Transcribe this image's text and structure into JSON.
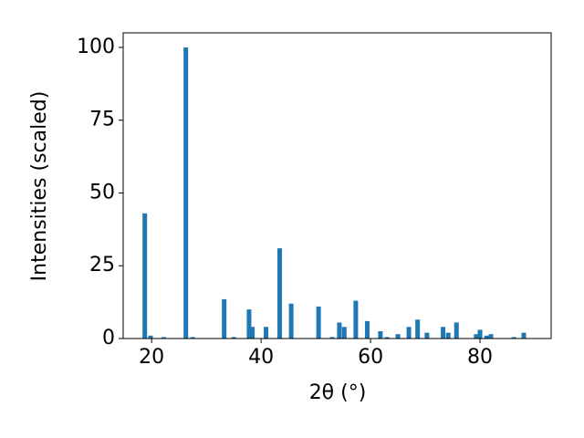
{
  "chart_data": {
    "type": "bar",
    "x_label": "2θ (°)",
    "y_label": "Intensities (scaled)",
    "x": [
      18.75,
      19.8,
      22.2,
      26.25,
      27.5,
      33.25,
      35,
      37.8,
      38.4,
      40.9,
      43.4,
      45.5,
      50.5,
      53,
      54.3,
      55.2,
      57.3,
      59.4,
      61.8,
      63,
      65,
      67,
      68.6,
      70.3,
      73.25,
      74.2,
      75.7,
      79.3,
      80,
      81.2,
      82,
      86.2,
      88
    ],
    "values": [
      43,
      1,
      0.5,
      100,
      0.5,
      13.5,
      0.5,
      10,
      4,
      4,
      31,
      12,
      11,
      0.5,
      5.5,
      4,
      13,
      6,
      2.5,
      0.5,
      1.5,
      4,
      6.5,
      2,
      4,
      2,
      5.5,
      1.5,
      3,
      1,
      1.5,
      0.5,
      2
    ],
    "color": "#1f77b4",
    "xlim": [
      14.8,
      93
    ],
    "xticks": [
      20,
      40,
      60,
      80
    ],
    "ylim": [
      0,
      105
    ],
    "yticks": [
      0,
      25,
      50,
      75,
      100
    ]
  }
}
